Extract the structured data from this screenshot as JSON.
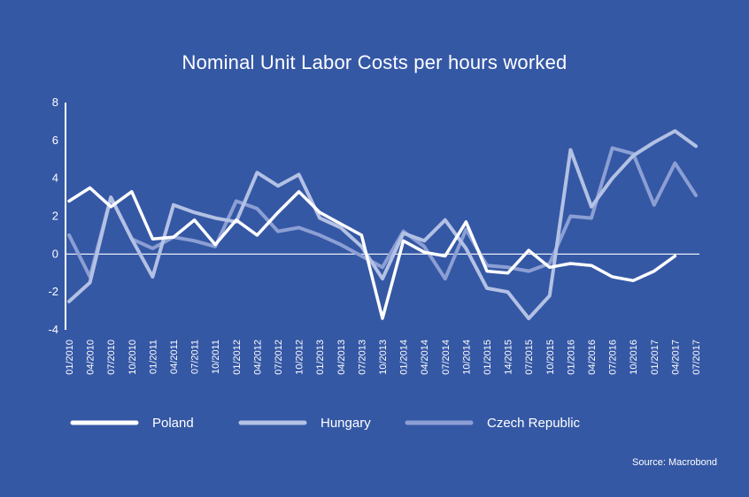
{
  "chart_data": {
    "type": "line",
    "title": "Nominal Unit Labor Costs per hours worked",
    "source": "Source: Macrobond",
    "xlabel": "",
    "ylabel": "",
    "ylim": [
      -4,
      8
    ],
    "yticks": [
      "8",
      "6",
      "4",
      "2",
      "0",
      "-2",
      "-4"
    ],
    "ytick_values": [
      8,
      6,
      4,
      2,
      0,
      -2,
      -4
    ],
    "categories": [
      "01/2010",
      "04/2010",
      "07/2010",
      "10/2010",
      "01/2011",
      "04/2011",
      "07/2011",
      "10/2011",
      "01/2012",
      "04/2012",
      "07/2012",
      "10/2012",
      "01/2013",
      "04/2013",
      "07/2013",
      "10/2013",
      "01/2014",
      "04/2014",
      "07/2014",
      "10/2014",
      "01/2015",
      "14/2015",
      "07/2015",
      "10/2015",
      "01/2016",
      "04/2016",
      "07/2016",
      "10/2016",
      "01/2017",
      "04/2017",
      "07/2017"
    ],
    "series": [
      {
        "name": "Poland",
        "color": "#ffffff",
        "values": [
          2.8,
          3.5,
          2.5,
          3.3,
          0.8,
          0.9,
          1.8,
          0.5,
          1.8,
          1.0,
          2.2,
          3.3,
          2.2,
          1.6,
          1.0,
          -3.4,
          0.7,
          0.1,
          -0.1,
          1.7,
          -0.9,
          -1.0,
          0.2,
          -0.7,
          -0.5,
          -0.6,
          -1.2,
          -1.4,
          -0.9,
          -0.1,
          null
        ]
      },
      {
        "name": "Hungary",
        "color": "#b3c1e4",
        "values": [
          -2.5,
          -1.5,
          3.0,
          0.8,
          -1.2,
          2.6,
          2.2,
          1.9,
          1.7,
          4.3,
          3.6,
          4.2,
          1.9,
          1.4,
          0.4,
          -1.3,
          1.1,
          0.7,
          1.8,
          0.3,
          -1.8,
          -2.0,
          -3.4,
          -2.2,
          5.5,
          2.5,
          4.0,
          5.2,
          5.9,
          6.5,
          5.7
        ]
      },
      {
        "name": "Czech Republic",
        "color": "#8c9fd4",
        "values": [
          1.0,
          -1.2,
          3.0,
          0.8,
          0.3,
          0.9,
          0.7,
          0.4,
          2.8,
          2.4,
          1.2,
          1.4,
          1.0,
          0.5,
          -0.1,
          -0.7,
          1.2,
          0.4,
          -1.3,
          1.3,
          -0.6,
          -0.7,
          -0.9,
          -0.5,
          2.0,
          1.9,
          5.6,
          5.3,
          2.6,
          4.8,
          3.1
        ]
      }
    ],
    "legend": [
      "Poland",
      "Hungary",
      "Czech Republic"
    ],
    "legend_position": "bottom"
  },
  "colors": {
    "background": "#3558a5",
    "text": "#ffffff",
    "zero_line": "#ffffff",
    "axis": "#ffffff"
  }
}
